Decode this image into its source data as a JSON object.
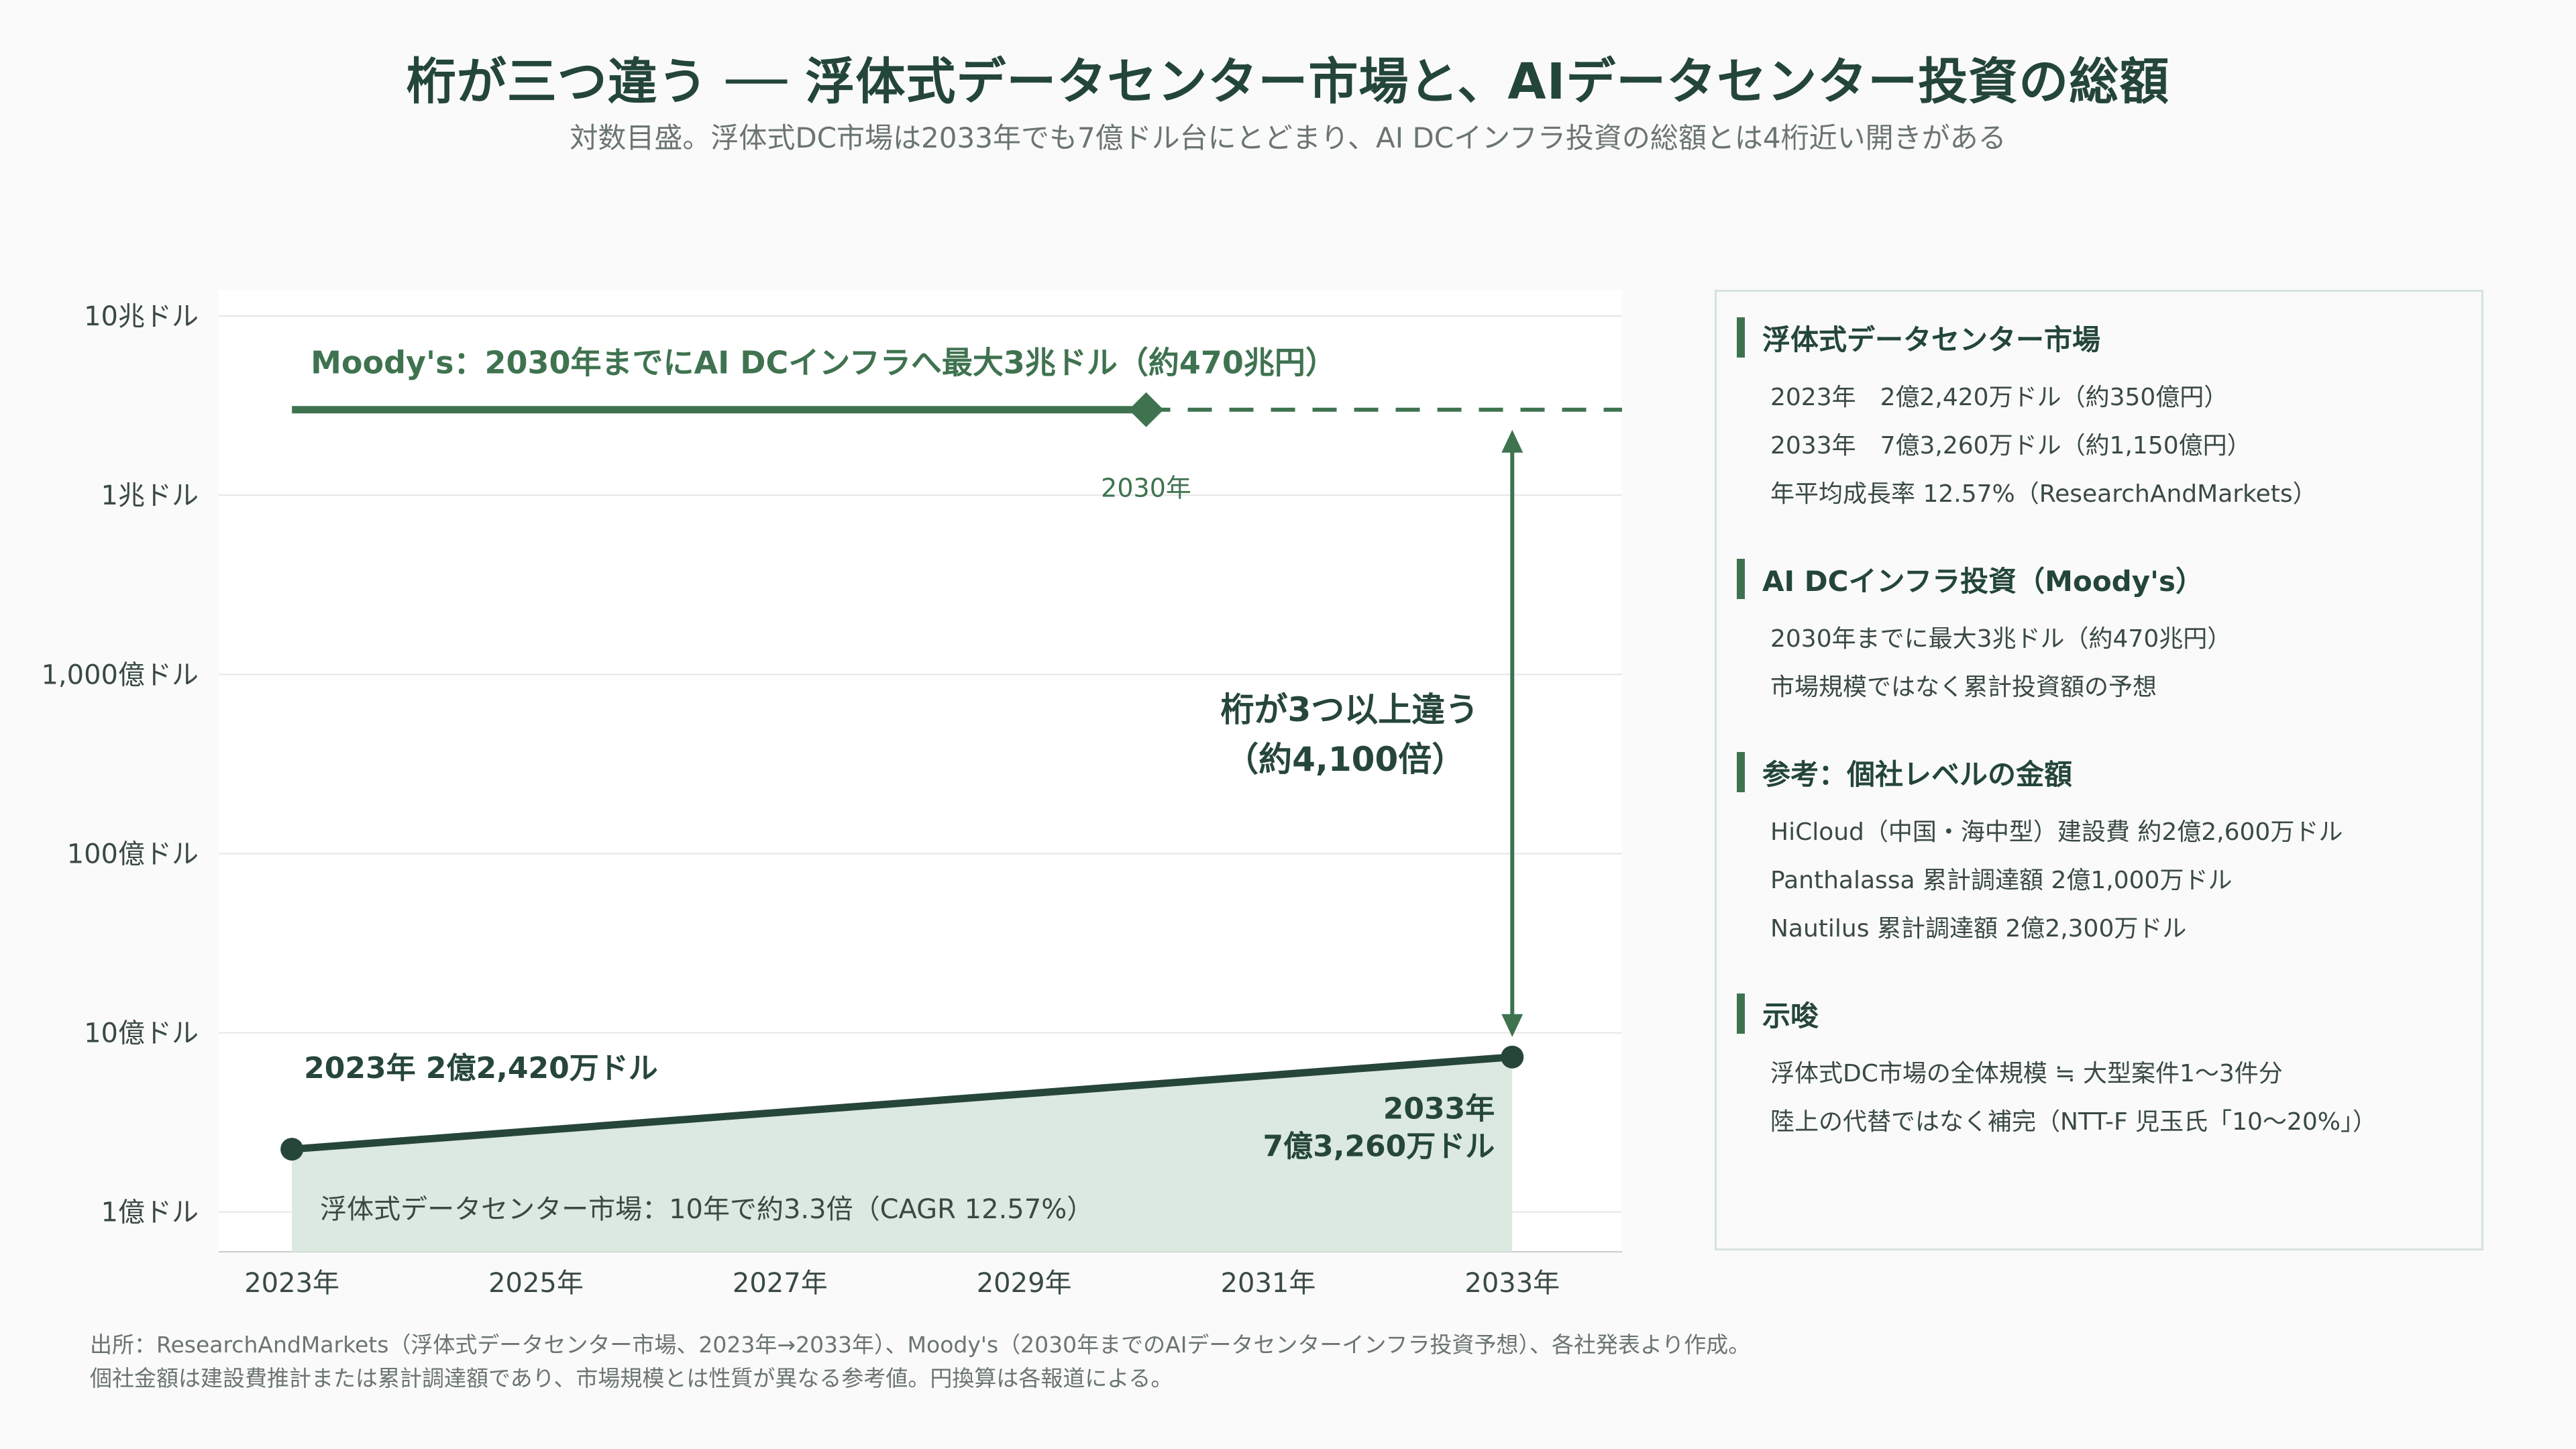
{
  "header": {
    "title": "桁が三つ違う ── 浮体式データセンター市場と、AIデータセンター投資の総額",
    "subtitle": "対数目盛。浮体式DC市場は2033年でも7億ドル台にとどまり、AI DCインフラ投資の総額とは4桁近い開きがある"
  },
  "chart_data": {
    "type": "line",
    "scale": "log",
    "ytick_labels": [
      "10兆ドル",
      "1兆ドル",
      "1,000億ドル",
      "100億ドル",
      "10億ドル",
      "1億ドル"
    ],
    "yticks_usd": [
      10000000000000,
      1000000000000,
      100000000000,
      10000000000,
      1000000000,
      100000000
    ],
    "xtick_labels": [
      "2023年",
      "2025年",
      "2027年",
      "2029年",
      "2031年",
      "2033年"
    ],
    "xticks": [
      2023,
      2025,
      2027,
      2029,
      2031,
      2033
    ],
    "xlim": [
      2022.4,
      2033.9
    ],
    "ylim_usd": [
      60000000,
      14000000000000
    ],
    "grid": true,
    "series": [
      {
        "name": "浮体式データセンター市場",
        "points": [
          {
            "x": 2023,
            "y": 224200000
          },
          {
            "x": 2033,
            "y": 732600000
          }
        ],
        "start_label": "2023年 2億2,420万ドル",
        "end_label_line1": "2033年",
        "end_label_line2": "7億3,260万ドル",
        "area_label": "浮体式データセンター市場：10年で約3.3倍（CAGR 12.57%）"
      },
      {
        "name": "Moody's",
        "y": 3000000000000,
        "x_start": 2023,
        "x_marker": 2030,
        "marker_label": "2030年",
        "label": "Moody's：2030年までにAI DCインフラへ最大3兆ドル（約470兆円）"
      }
    ],
    "annotation": {
      "x": 2033,
      "line1": "桁が3つ以上違う",
      "line2": "（約4,100倍）"
    },
    "colors": {
      "dark": "#26463a",
      "green": "#3f7350",
      "area": "#dce9e0",
      "grid": "#e6e6e6",
      "tick": "#3a4a43"
    }
  },
  "panel": {
    "sections": [
      {
        "title": "浮体式データセンター市場",
        "lines": [
          "2023年　2億2,420万ドル（約350億円）",
          "2033年　7億3,260万ドル（約1,150億円）",
          "年平均成長率 12.57%（ResearchAndMarkets）"
        ]
      },
      {
        "title": "AI DCインフラ投資（Moody's）",
        "lines": [
          "2030年までに最大3兆ドル（約470兆円）",
          "市場規模ではなく累計投資額の予想"
        ]
      },
      {
        "title": "参考：個社レベルの金額",
        "lines": [
          "HiCloud（中国・海中型）建設費 約2億2,600万ドル",
          "Panthalassa 累計調達額 2億1,000万ドル",
          "Nautilus 累計調達額 2億2,300万ドル"
        ]
      },
      {
        "title": "示唆",
        "lines": [
          "浮体式DC市場の全体規模 ≒ 大型案件1〜3件分",
          "陸上の代替ではなく補完（NTT-F 児玉氏「10〜20%」）"
        ]
      }
    ]
  },
  "footer": {
    "line1": "出所：ResearchAndMarkets（浮体式データセンター市場、2023年→2033年）、Moody's（2030年までのAIデータセンターインフラ投資予想）、各社発表より作成。",
    "line2": "個社金額は建設費推計または累計調達額であり、市場規模とは性質が異なる参考値。円換算は各報道による。"
  }
}
